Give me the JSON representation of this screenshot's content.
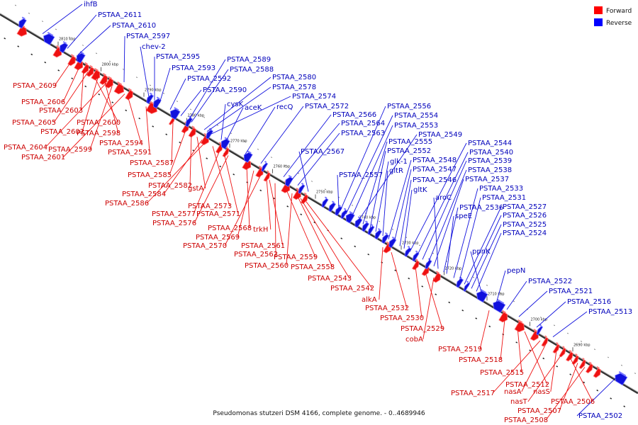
{
  "legend": {
    "forward_label": "Forward",
    "reverse_label": "Reverse",
    "forward_color": "#ff0000",
    "reverse_color": "#0000ff"
  },
  "caption": "Pseudomonas stutzeri DSM 4166, complete genome. - 0..4689946",
  "colors": {
    "forward_fill": "#ee1111",
    "forward_light": "#ff7777",
    "reverse_fill": "#1111dd",
    "reverse_light": "#7777ff",
    "forward_text": "#cc0000",
    "reverse_text": "#0000bb",
    "axis": "#555555"
  },
  "ticks": [
    "2810 kbp",
    "2800 kbp",
    "2790 kbp",
    "2780 kbp",
    "2770 kbp",
    "2760 kbp",
    "2750 kbp",
    "2740 kbp",
    "2730 kbp",
    "2720 kbp",
    "2710 kbp",
    "2700 kbp",
    "2690 kbp"
  ],
  "reverse_labels": [
    "ihfB",
    "PSTAA_2611",
    "PSTAA_2610",
    "PSTAA_2597",
    "chev-2",
    "PSTAA_2595",
    "PSTAA_2593",
    "PSTAA_2592",
    "PSTAA_2590",
    "PSTAA_2589",
    "PSTAA_2588",
    "PSTAA_2580",
    "PSTAA_2578",
    "PSTAA_2574",
    "cysK",
    "aceK",
    "recQ",
    "PSTAA_2572",
    "PSTAA_2566",
    "PSTAA_2564",
    "PSTAA_2563",
    "PSTAA_2567",
    "PSTAA_2556",
    "PSTAA_2554",
    "PSTAA_2553",
    "PSTAA_2549",
    "PSTAA_2555",
    "PSTAA_2552",
    "PSTAA_2557",
    "glk-1",
    "gltR",
    "PSTAA_2548",
    "PSTAA_2547",
    "PSTAA_2546",
    "gltK",
    "PSTAA_2544",
    "PSTAA_2540",
    "PSTAA_2539",
    "PSTAA_2538",
    "PSTAA_2537",
    "aroC",
    "PSTAA_2536",
    "speE",
    "PSTAA_2533",
    "PSTAA_2531",
    "PSTAA_2527",
    "PSTAA_2526",
    "PSTAA_2525",
    "PSTAA_2524",
    "ppnK",
    "pepN",
    "PSTAA_2522",
    "PSTAA_2521",
    "PSTAA_2516",
    "PSTAA_2513",
    "PSTAA_2502"
  ],
  "forward_labels": [
    "PSTAA_2609",
    "PSTAA_2606",
    "PSTAA_2603",
    "PSTAA_2605",
    "PSTAA_2600",
    "PSTAA_2602",
    "PSTAA_2598",
    "PSTAA_2604",
    "PSTAA_2599",
    "PSTAA_2601",
    "PSTAA_2594",
    "PSTAA_2591",
    "PSTAA_2587",
    "PSTAA_2585",
    "PSTAA_2582",
    "gstA",
    "PSTAA_2584",
    "PSTAA_2586",
    "PSTAA_2573",
    "PSTAA_2577",
    "PSTAA_2571",
    "PSTAA_2576",
    "PSTAA_2568",
    "PSTAA_2569",
    "PSTAA_2570",
    "trkH",
    "PSTAA_2561",
    "PSTAA_2562",
    "PSTAA_2559",
    "PSTAA_2560",
    "PSTAA_2558",
    "PSTAA_2543",
    "PSTAA_2542",
    "alkA",
    "PSTAA_2532",
    "PSTAA_2530",
    "PSTAA_2529",
    "cobA",
    "PSTAA_2519",
    "PSTAA_2518",
    "PSTAA_2515",
    "PSTAA_2512",
    "PSTAA_2517",
    "nasA",
    "nasS",
    "nasT",
    "PSTAA_2506",
    "PSTAA_2507",
    "PSTAA_2508"
  ]
}
